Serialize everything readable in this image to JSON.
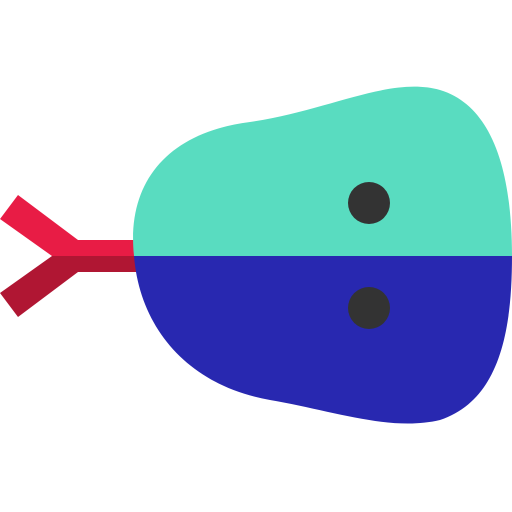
{
  "illustration": {
    "icon": "rattle-toy-icon",
    "colors": {
      "handle_top": "#E81C45",
      "handle_bottom": "#B01633",
      "head_top": "#59DCC0",
      "head_bottom": "#2828B0",
      "eyes": "#333333",
      "background": "#FFFFFF"
    }
  }
}
